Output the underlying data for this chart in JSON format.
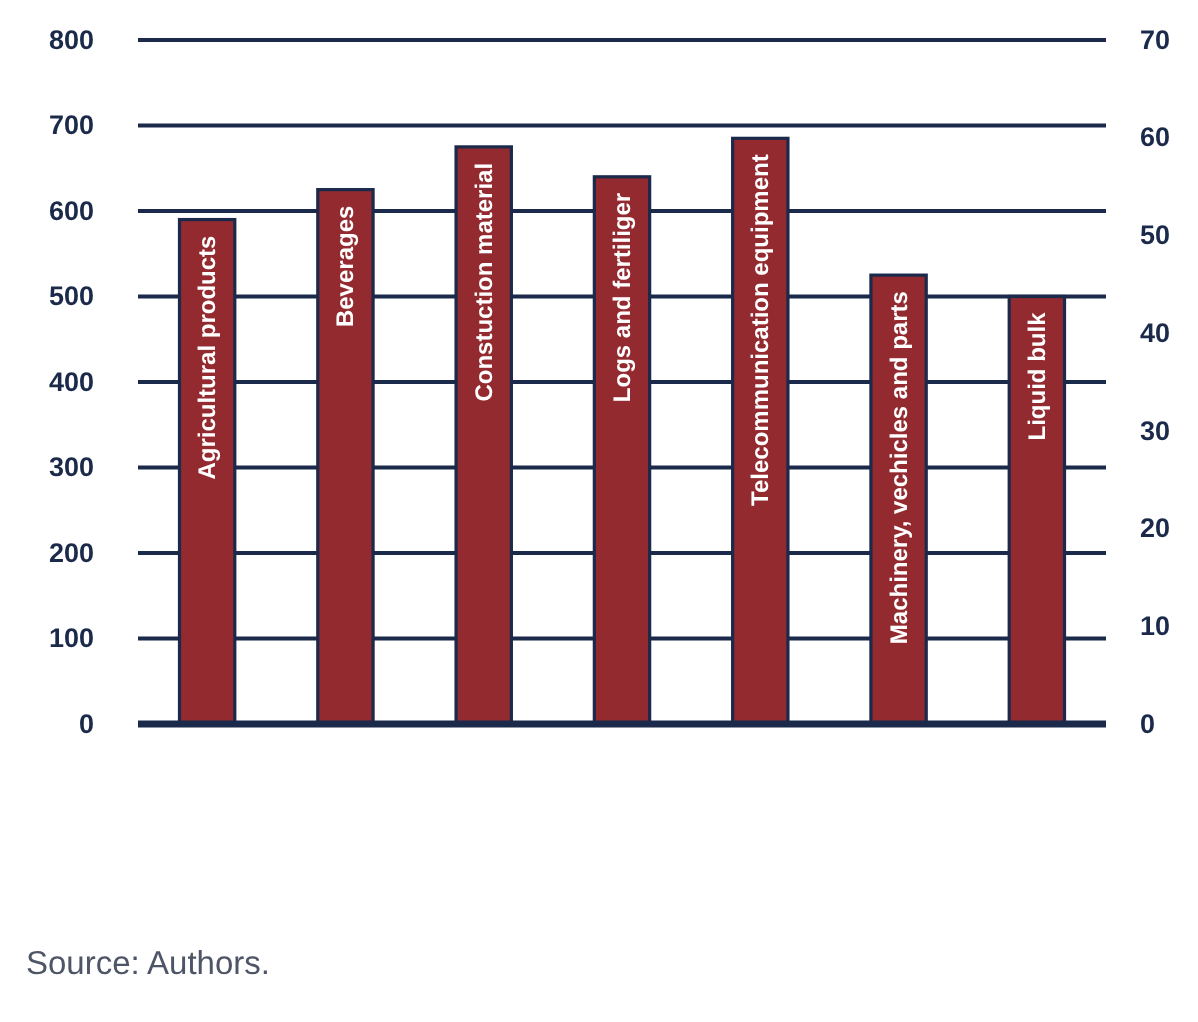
{
  "chart_data": {
    "type": "bar",
    "categories": [
      "Agricultural products",
      "Beverages",
      "Constuction material",
      "Logs and fertiliger",
      "Telecommunication equipment",
      "Machinery, vechicles and parts",
      "Liquid bulk"
    ],
    "values": [
      590,
      625,
      675,
      640,
      685,
      525,
      500
    ],
    "color": "#922a30",
    "ylim": [
      0,
      800
    ],
    "yticks": [
      0,
      100,
      200,
      300,
      400,
      500,
      600,
      700,
      800
    ],
    "y2lim": [
      0,
      70
    ],
    "y2ticks": [
      0,
      10,
      20,
      30,
      40,
      50,
      60,
      70
    ],
    "grid": "y",
    "annotations": [
      "Source: Authors."
    ]
  }
}
